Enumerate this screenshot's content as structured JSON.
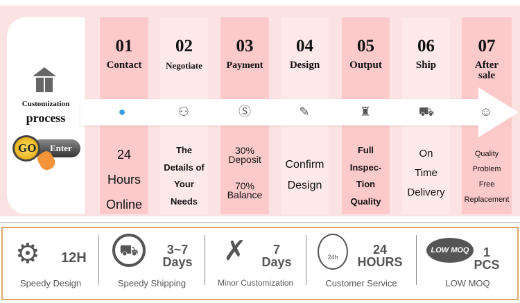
{
  "left": {
    "line1": "Customization",
    "line2": "process",
    "go": "GO",
    "enter": "Enter"
  },
  "steps": [
    {
      "num": "01",
      "label": "Contact",
      "desc": [
        "24",
        "Hours",
        "Online"
      ],
      "icon": "chat-bubble-icon"
    },
    {
      "num": "02",
      "label": "Negotiate",
      "desc": [
        "The",
        "Details of",
        "Your",
        "Needs"
      ],
      "icon": "meeting-icon"
    },
    {
      "num": "03",
      "label": "Payment",
      "desc": [
        "30%",
        "Deposit",
        "70%",
        "Balance"
      ],
      "icon": "dollar-icon"
    },
    {
      "num": "04",
      "label": "Design",
      "desc": [
        "Confirm",
        "Design"
      ],
      "icon": "brush-icon"
    },
    {
      "num": "05",
      "label": "Output",
      "desc": [
        "Full",
        "Inspec-",
        "Tion",
        "Quality"
      ],
      "icon": "factory-icon"
    },
    {
      "num": "06",
      "label": "Ship",
      "desc": [
        "On",
        "Time",
        "Delivery"
      ],
      "icon": "truck-icon"
    },
    {
      "num": "07",
      "label": "After sale",
      "desc": [
        "Quality",
        "Problem",
        "Free",
        "Replacement"
      ],
      "icon": "support-person-icon"
    }
  ],
  "features": [
    {
      "big": "12H",
      "caption": "Speedy Design",
      "icon": "gear-pencil-icon"
    },
    {
      "big1": "3~7",
      "big2": "Days",
      "caption": "Speedy Shipping",
      "icon": "truck-circle-icon"
    },
    {
      "big1": "7",
      "big2": "Days",
      "caption": "Minor Customization",
      "icon": "ruler-pencil-icon"
    },
    {
      "big1": "24",
      "big2": "HOURS",
      "caption": "Customer Service",
      "icon": "24h-service-icon",
      "badge": "24h"
    },
    {
      "big1": "1",
      "big2": "PCS",
      "caption": "LOW MOQ",
      "icon": "low-moq-badge-icon",
      "badge": "LOW MOQ"
    }
  ]
}
